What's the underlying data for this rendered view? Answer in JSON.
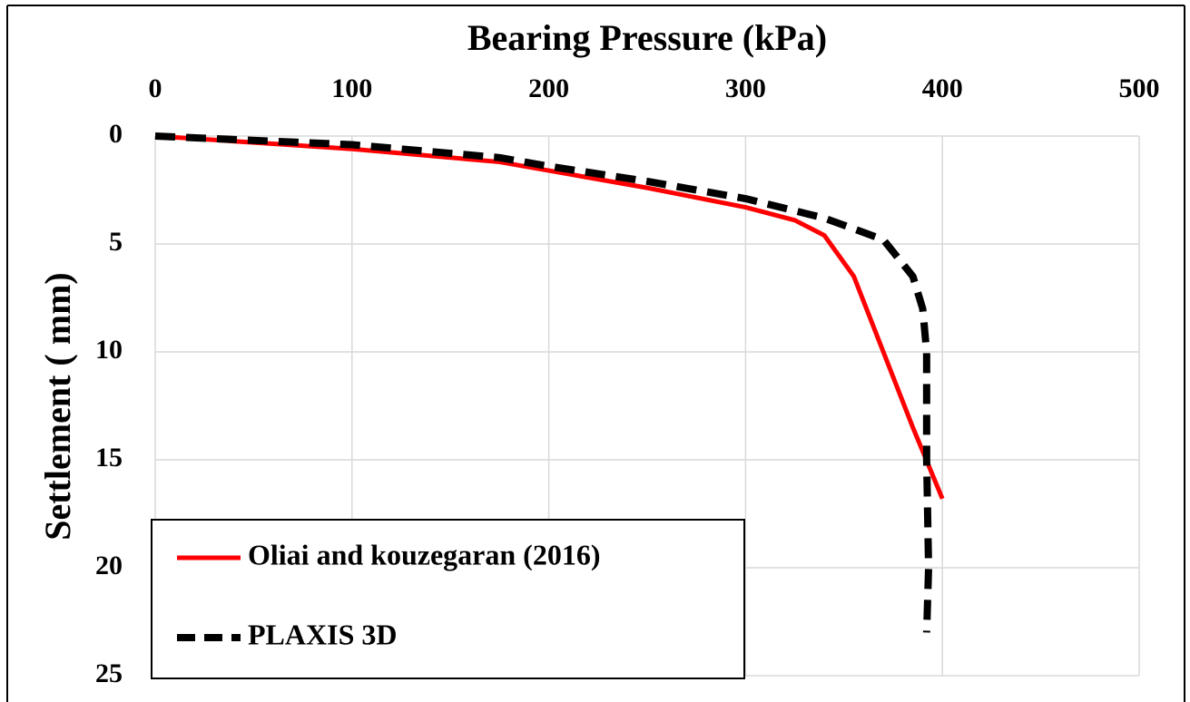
{
  "chart_data": {
    "type": "line",
    "xlabel": "Bearing Pressure (kPa)",
    "ylabel": "Settlement ( mm)",
    "xlim": [
      0,
      500
    ],
    "xticks": [
      0,
      100,
      200,
      300,
      400,
      500
    ],
    "ylim": [
      0,
      25
    ],
    "yticks": [
      0,
      5,
      10,
      15,
      20,
      25
    ],
    "y_inverted": true,
    "x_axis_position": "top",
    "grid": true,
    "legend": "lower left",
    "series": [
      {
        "name": "Oliai and kouzegaran (2016)",
        "color": "#ff0000",
        "linestyle": "solid",
        "x": [
          0,
          50,
          100,
          175,
          200,
          250,
          300,
          325,
          340,
          355,
          370,
          385,
          400
        ],
        "values": [
          0,
          0.3,
          0.6,
          1.2,
          1.6,
          2.4,
          3.3,
          3.9,
          4.6,
          6.5,
          10,
          13.5,
          16.8
        ]
      },
      {
        "name": "PLAXIS 3D",
        "color": "#000000",
        "linestyle": "dashed",
        "x": [
          0,
          100,
          175,
          200,
          250,
          300,
          340,
          370,
          385,
          390,
          392,
          392,
          393,
          392
        ],
        "values": [
          0,
          0.4,
          1,
          1.4,
          2.1,
          2.9,
          3.8,
          4.8,
          6.5,
          8,
          10,
          15,
          20,
          23
        ]
      }
    ]
  }
}
